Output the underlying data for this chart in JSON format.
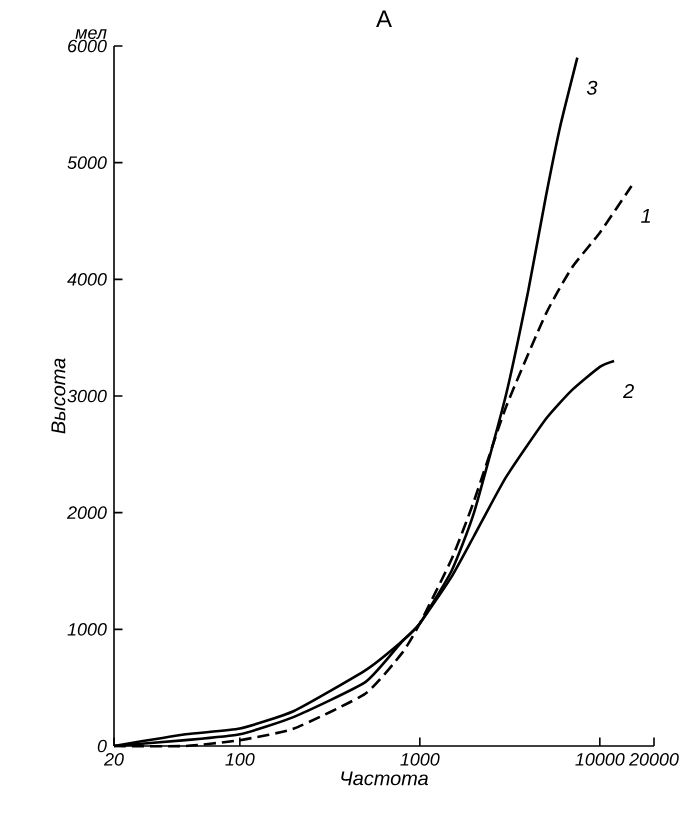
{
  "chart_data": {
    "type": "line",
    "title": "А",
    "xlabel": "Частота",
    "ylabel": "Высота",
    "log": "x",
    "grid": false,
    "marker": "none",
    "xlim": [
      20,
      20000
    ],
    "ylim": [
      0,
      6000
    ],
    "xticks": [
      20,
      100,
      1000,
      10000,
      20000
    ],
    "yticks": [
      0,
      1000,
      2000,
      3000,
      4000,
      5000,
      6000
    ],
    "annotations": [
      "мел"
    ],
    "series": [
      {
        "name": "1",
        "color": "#000000",
        "line_style": "dashed",
        "x": [
          20,
          50,
          100,
          200,
          500,
          800,
          1000,
          1500,
          2000,
          3000,
          5000,
          7000,
          10000,
          15000
        ],
        "values": [
          0,
          0,
          50,
          150,
          450,
          800,
          1050,
          1600,
          2100,
          2900,
          3700,
          4100,
          4400,
          4800
        ]
      },
      {
        "name": "2",
        "color": "#000000",
        "line_style": "solid",
        "x": [
          20,
          50,
          100,
          200,
          500,
          800,
          1000,
          1500,
          2000,
          3000,
          5000,
          7000,
          10000,
          12000
        ],
        "values": [
          0,
          100,
          150,
          300,
          650,
          900,
          1050,
          1450,
          1800,
          2300,
          2800,
          3050,
          3250,
          3300
        ]
      },
      {
        "name": "3",
        "color": "#000000",
        "line_style": "solid",
        "x": [
          20,
          50,
          100,
          200,
          500,
          800,
          1000,
          1500,
          2000,
          3000,
          4000,
          5000,
          6000,
          7500
        ],
        "values": [
          0,
          50,
          100,
          250,
          550,
          900,
          1050,
          1500,
          2000,
          3000,
          3900,
          4700,
          5300,
          5900
        ]
      }
    ]
  }
}
